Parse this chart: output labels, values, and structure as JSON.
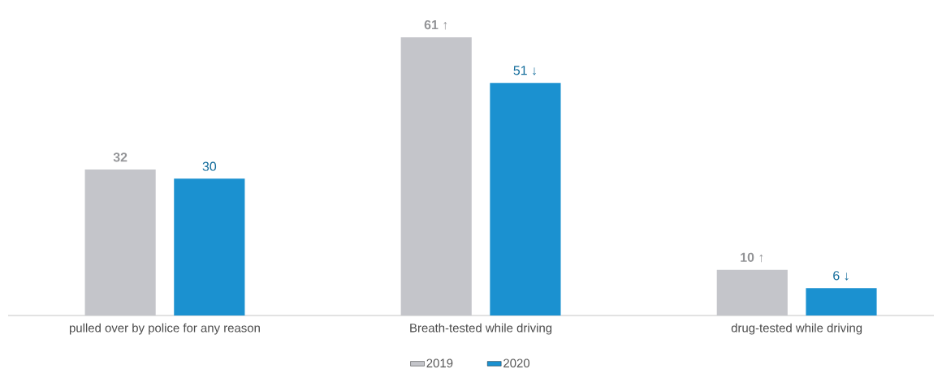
{
  "chart_data": {
    "type": "bar",
    "categories": [
      "pulled over by police for any reason",
      "Breath-tested while driving",
      "drug-tested while driving"
    ],
    "series": [
      {
        "name": "2019",
        "color": "#c4c5ca",
        "values": [
          32,
          61,
          10
        ],
        "value_labels": [
          "32",
          "61 ↑",
          "10 ↑"
        ]
      },
      {
        "name": "2020",
        "color": "#1b91d0",
        "values": [
          30,
          51,
          6
        ],
        "value_labels": [
          "30",
          "51 ↓",
          "6 ↓"
        ]
      }
    ],
    "legend": "bottom"
  }
}
